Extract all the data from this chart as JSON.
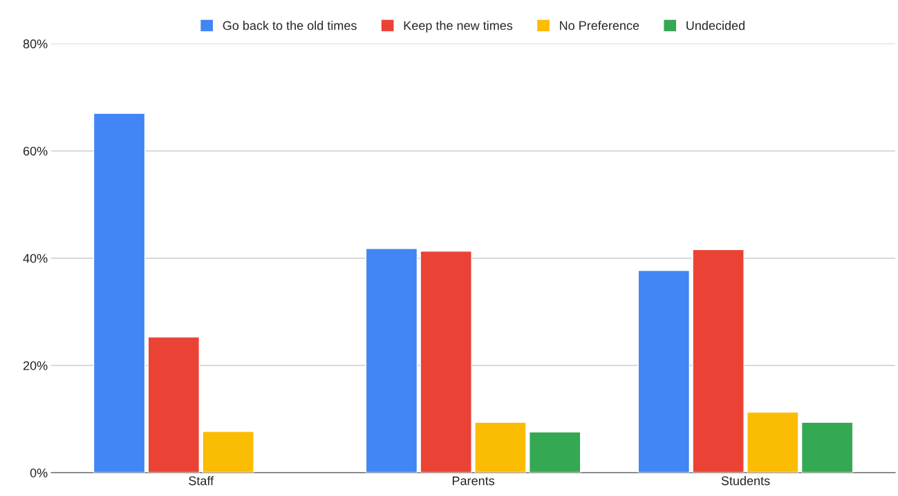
{
  "chart_data": {
    "type": "bar",
    "categories": [
      "Staff",
      "Parents",
      "Students"
    ],
    "series": [
      {
        "name": "Go back to the old times",
        "color": "#4285f4",
        "values": [
          67.0,
          41.8,
          37.7
        ]
      },
      {
        "name": "Keep the new times",
        "color": "#ea4335",
        "values": [
          25.3,
          41.3,
          41.6
        ]
      },
      {
        "name": "No Preference",
        "color": "#fbbc04",
        "values": [
          7.7,
          9.4,
          11.3
        ]
      },
      {
        "name": "Undecided",
        "color": "#34a853",
        "values": [
          null,
          7.6,
          9.4
        ]
      }
    ],
    "ylim": [
      0,
      80
    ],
    "yticks": [
      {
        "value": 0,
        "label": "0%"
      },
      {
        "value": 20,
        "label": "20%"
      },
      {
        "value": 40,
        "label": "40%"
      },
      {
        "value": 60,
        "label": "60%"
      },
      {
        "value": 80,
        "label": "80%"
      }
    ],
    "grid": "y",
    "legend": "top"
  }
}
